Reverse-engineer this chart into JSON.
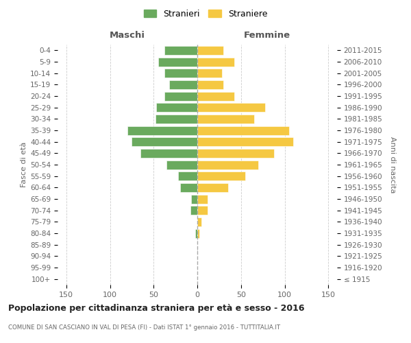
{
  "age_groups": [
    "100+",
    "95-99",
    "90-94",
    "85-89",
    "80-84",
    "75-79",
    "70-74",
    "65-69",
    "60-64",
    "55-59",
    "50-54",
    "45-49",
    "40-44",
    "35-39",
    "30-34",
    "25-29",
    "20-24",
    "15-19",
    "10-14",
    "5-9",
    "0-4"
  ],
  "birth_years": [
    "≤ 1915",
    "1916-1920",
    "1921-1925",
    "1926-1930",
    "1931-1935",
    "1936-1940",
    "1941-1945",
    "1946-1950",
    "1951-1955",
    "1956-1960",
    "1961-1965",
    "1966-1970",
    "1971-1975",
    "1976-1980",
    "1981-1985",
    "1986-1990",
    "1991-1995",
    "1996-2000",
    "2001-2005",
    "2006-2010",
    "2011-2015"
  ],
  "maschi": [
    0,
    0,
    0,
    0,
    2,
    0,
    8,
    7,
    20,
    22,
    35,
    65,
    75,
    80,
    48,
    47,
    38,
    32,
    38,
    45,
    38
  ],
  "femmine": [
    0,
    0,
    0,
    0,
    2,
    5,
    12,
    12,
    35,
    55,
    70,
    88,
    110,
    105,
    65,
    78,
    42,
    30,
    28,
    42,
    30
  ],
  "color_maschi": "#6aaa5e",
  "color_femmine": "#f5c842",
  "background_color": "#ffffff",
  "grid_color": "#cccccc",
  "title": "Popolazione per cittadinanza straniera per età e sesso - 2016",
  "subtitle": "COMUNE DI SAN CASCIANO IN VAL DI PESA (FI) - Dati ISTAT 1° gennaio 2016 - TUTTITALIA.IT",
  "header_left": "Maschi",
  "header_right": "Femmine",
  "ylabel_left": "Fasce di età",
  "ylabel_right": "Anni di nascita",
  "legend_maschi": "Stranieri",
  "legend_femmine": "Straniere",
  "xlim": 160
}
